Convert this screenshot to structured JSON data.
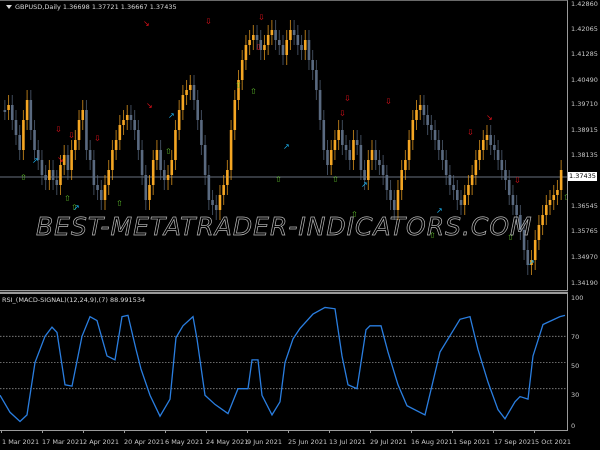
{
  "main_chart": {
    "title": "GBPUSD,Daily  1.36698 1.37721 1.36667 1.37435",
    "symbol": "GBPUSD",
    "timeframe": "Daily",
    "ohlc": {
      "open": "1.36698",
      "high": "1.37721",
      "low": "1.36667",
      "close": "1.37435"
    },
    "current_price": "1.37435",
    "price_axis": [
      "1.42860",
      "1.42065",
      "1.41285",
      "1.40490",
      "1.39710",
      "1.38915",
      "1.38135",
      "1.37340",
      "1.36545",
      "1.35765",
      "1.34970",
      "1.34190"
    ],
    "watermark": "BEST-METATRADER-INDICATORS.COM",
    "colors": {
      "bull_candle": "#f5a623",
      "bear_candle": "#5a6a80",
      "sell_arrow": "#e0101a",
      "buy_arrow": "#5cb82a",
      "cyan_arrow": "#1ab2f0",
      "price_line": "#8a96a8"
    }
  },
  "indicator": {
    "title": "RSI_(MACD-SIGNAL)(12,24,9),(7) 88.991534",
    "name": "RSI_(MACD-SIGNAL)",
    "params": "(12,24,9),(7)",
    "value": "88.991534",
    "axis": [
      "100",
      "70",
      "50",
      "30",
      "0"
    ],
    "levels": [
      70,
      50,
      30
    ],
    "line_color": "#2a7ee0"
  },
  "time_axis": [
    "1 Mar 2021",
    "17 Mar 2021",
    "2 Apr 2021",
    "20 Apr 2021",
    "6 May 2021",
    "24 May 2021",
    "9 Jun 2021",
    "25 Jun 2021",
    "13 Jul 2021",
    "29 Jul 2021",
    "16 Aug 2021",
    "1 Sep 2021",
    "17 Sep 2021",
    "5 Oct 2021"
  ]
}
